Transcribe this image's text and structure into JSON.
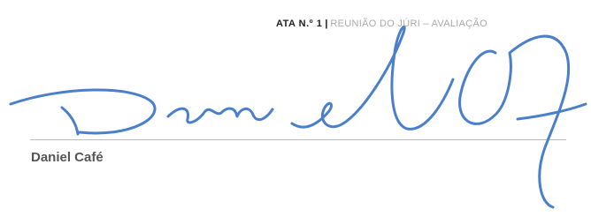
{
  "header": {
    "document": "ATA N.º 1",
    "section": "REUNIÃO DO JÚRI – AVALIAÇÃO"
  },
  "signatory": {
    "name": "Daniel Café"
  }
}
